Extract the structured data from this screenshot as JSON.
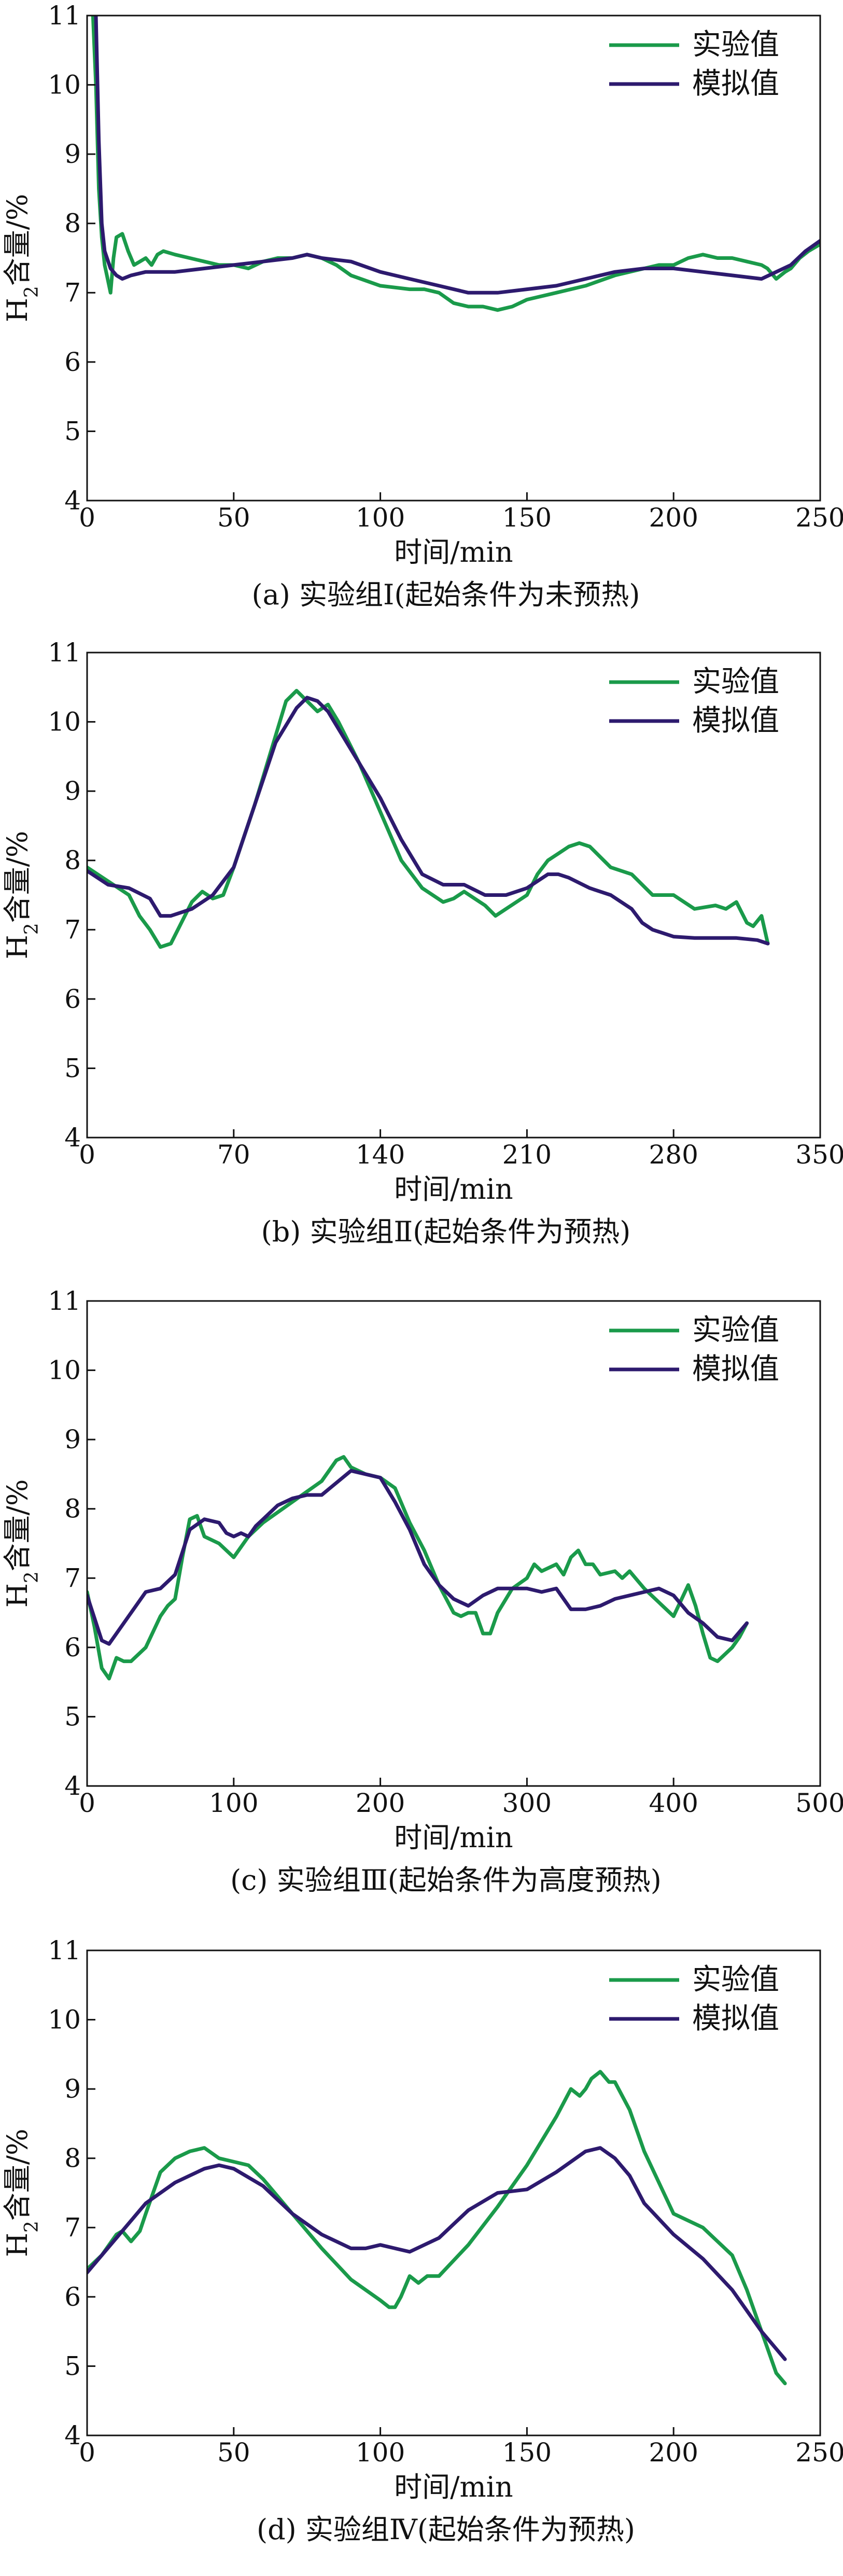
{
  "chart_data": [
    {
      "type": "line",
      "caption": "(a) 实验组Ⅰ(起始条件为未预热)",
      "xlabel": "时间/min",
      "ylabel": "H2含量/%",
      "xlim": [
        0,
        250
      ],
      "ylim": [
        4,
        11
      ],
      "xticks": [
        0,
        50,
        100,
        150,
        200,
        250
      ],
      "yticks": [
        4,
        5,
        6,
        7,
        8,
        9,
        10,
        11
      ],
      "legend_position": "top-right",
      "series": [
        {
          "name": "实验值",
          "color": "#1a9a4a",
          "x": [
            2,
            3,
            4,
            5,
            6,
            7,
            8,
            9,
            10,
            12,
            14,
            16,
            18,
            20,
            22,
            24,
            26,
            30,
            35,
            40,
            45,
            50,
            55,
            60,
            65,
            70,
            75,
            80,
            85,
            90,
            100,
            110,
            115,
            120,
            125,
            130,
            135,
            140,
            145,
            150,
            160,
            170,
            180,
            190,
            195,
            200,
            205,
            210,
            215,
            220,
            225,
            230,
            232,
            235,
            238,
            240,
            243,
            246,
            250
          ],
          "y": [
            11,
            10.0,
            8.5,
            7.8,
            7.4,
            7.2,
            7.0,
            7.5,
            7.8,
            7.85,
            7.6,
            7.4,
            7.45,
            7.5,
            7.4,
            7.55,
            7.6,
            7.55,
            7.5,
            7.45,
            7.4,
            7.4,
            7.35,
            7.45,
            7.5,
            7.5,
            7.55,
            7.5,
            7.4,
            7.25,
            7.1,
            7.05,
            7.05,
            7.0,
            6.85,
            6.8,
            6.8,
            6.75,
            6.8,
            6.9,
            7.0,
            7.1,
            7.25,
            7.35,
            7.4,
            7.4,
            7.5,
            7.55,
            7.5,
            7.5,
            7.45,
            7.4,
            7.35,
            7.2,
            7.3,
            7.35,
            7.5,
            7.6,
            7.7
          ]
        },
        {
          "name": "模拟值",
          "color": "#2d1a6e",
          "x": [
            3,
            4,
            5,
            6,
            8,
            10,
            12,
            15,
            20,
            30,
            40,
            50,
            60,
            70,
            75,
            80,
            90,
            100,
            110,
            120,
            130,
            140,
            150,
            160,
            170,
            180,
            190,
            200,
            210,
            220,
            230,
            235,
            240,
            245,
            250
          ],
          "y": [
            11,
            9.2,
            8.0,
            7.6,
            7.35,
            7.25,
            7.2,
            7.25,
            7.3,
            7.3,
            7.35,
            7.4,
            7.45,
            7.5,
            7.55,
            7.5,
            7.45,
            7.3,
            7.2,
            7.1,
            7.0,
            7.0,
            7.05,
            7.1,
            7.2,
            7.3,
            7.35,
            7.35,
            7.3,
            7.25,
            7.2,
            7.3,
            7.4,
            7.6,
            7.75
          ]
        }
      ]
    },
    {
      "type": "line",
      "caption": "(b) 实验组Ⅱ(起始条件为预热)",
      "xlabel": "时间/min",
      "ylabel": "H2含量/%",
      "xlim": [
        0,
        350
      ],
      "ylim": [
        4,
        11
      ],
      "xticks": [
        0,
        70,
        140,
        210,
        280,
        350
      ],
      "yticks": [
        4,
        5,
        6,
        7,
        8,
        9,
        10,
        11
      ],
      "legend_position": "top-right",
      "series": [
        {
          "name": "实验值",
          "color": "#1a9a4a",
          "x": [
            0,
            10,
            20,
            25,
            30,
            35,
            40,
            45,
            50,
            55,
            60,
            65,
            70,
            80,
            90,
            95,
            100,
            105,
            110,
            115,
            120,
            125,
            130,
            140,
            150,
            160,
            170,
            175,
            180,
            185,
            190,
            195,
            200,
            210,
            215,
            220,
            225,
            230,
            235,
            240,
            250,
            260,
            270,
            280,
            290,
            300,
            305,
            310,
            315,
            318,
            322,
            325
          ],
          "y": [
            7.9,
            7.7,
            7.5,
            7.2,
            7.0,
            6.75,
            6.8,
            7.1,
            7.4,
            7.55,
            7.45,
            7.5,
            7.9,
            8.8,
            9.8,
            10.3,
            10.45,
            10.3,
            10.15,
            10.25,
            10.0,
            9.7,
            9.4,
            8.7,
            8.0,
            7.6,
            7.4,
            7.45,
            7.55,
            7.45,
            7.35,
            7.2,
            7.3,
            7.5,
            7.8,
            8.0,
            8.1,
            8.2,
            8.25,
            8.2,
            7.9,
            7.8,
            7.5,
            7.5,
            7.3,
            7.35,
            7.3,
            7.4,
            7.1,
            7.05,
            7.2,
            6.8
          ]
        },
        {
          "name": "模拟值",
          "color": "#2d1a6e",
          "x": [
            0,
            10,
            20,
            30,
            35,
            40,
            50,
            60,
            70,
            80,
            90,
            100,
            105,
            110,
            115,
            120,
            130,
            140,
            150,
            160,
            170,
            180,
            190,
            200,
            210,
            220,
            225,
            230,
            240,
            250,
            260,
            265,
            270,
            280,
            290,
            300,
            310,
            320,
            325
          ],
          "y": [
            7.85,
            7.65,
            7.6,
            7.45,
            7.2,
            7.2,
            7.3,
            7.5,
            7.9,
            8.8,
            9.7,
            10.2,
            10.35,
            10.3,
            10.15,
            9.9,
            9.4,
            8.9,
            8.3,
            7.8,
            7.65,
            7.65,
            7.5,
            7.5,
            7.6,
            7.8,
            7.8,
            7.75,
            7.6,
            7.5,
            7.3,
            7.1,
            7.0,
            6.9,
            6.88,
            6.88,
            6.88,
            6.85,
            6.8
          ]
        }
      ]
    },
    {
      "type": "line",
      "caption": "(c) 实验组Ⅲ(起始条件为高度预热)",
      "xlabel": "时间/min",
      "ylabel": "H2含量/%",
      "xlim": [
        0,
        500
      ],
      "ylim": [
        4,
        11
      ],
      "xticks": [
        0,
        100,
        200,
        300,
        400,
        500
      ],
      "yticks": [
        4,
        5,
        6,
        7,
        8,
        9,
        10,
        11
      ],
      "legend_position": "top-right",
      "series": [
        {
          "name": "实验值",
          "color": "#1a9a4a",
          "x": [
            0,
            5,
            10,
            15,
            20,
            25,
            30,
            40,
            50,
            55,
            60,
            65,
            70,
            75,
            80,
            90,
            100,
            110,
            120,
            140,
            160,
            170,
            175,
            180,
            190,
            200,
            210,
            220,
            230,
            240,
            250,
            255,
            260,
            265,
            270,
            275,
            280,
            290,
            300,
            305,
            310,
            320,
            325,
            330,
            335,
            340,
            345,
            350,
            360,
            365,
            370,
            380,
            385,
            390,
            400,
            410,
            415,
            420,
            425,
            430,
            435,
            440,
            445,
            450
          ],
          "y": [
            6.8,
            6.3,
            5.7,
            5.55,
            5.85,
            5.8,
            5.8,
            6.0,
            6.45,
            6.6,
            6.7,
            7.3,
            7.85,
            7.9,
            7.6,
            7.5,
            7.3,
            7.6,
            7.8,
            8.1,
            8.4,
            8.7,
            8.75,
            8.6,
            8.5,
            8.45,
            8.3,
            7.8,
            7.4,
            6.9,
            6.5,
            6.45,
            6.5,
            6.5,
            6.2,
            6.2,
            6.5,
            6.85,
            7.0,
            7.2,
            7.1,
            7.2,
            7.05,
            7.3,
            7.4,
            7.2,
            7.2,
            7.05,
            7.1,
            7.0,
            7.1,
            6.85,
            6.75,
            6.65,
            6.45,
            6.9,
            6.6,
            6.2,
            5.85,
            5.8,
            5.9,
            6.0,
            6.15,
            6.35
          ]
        },
        {
          "name": "模拟值",
          "color": "#2d1a6e",
          "x": [
            0,
            10,
            15,
            20,
            30,
            40,
            50,
            60,
            70,
            80,
            90,
            95,
            100,
            105,
            110,
            115,
            120,
            130,
            140,
            150,
            160,
            180,
            200,
            210,
            220,
            230,
            240,
            250,
            260,
            270,
            280,
            290,
            300,
            310,
            320,
            330,
            340,
            350,
            360,
            370,
            380,
            390,
            400,
            410,
            420,
            430,
            440,
            450
          ],
          "y": [
            6.75,
            6.1,
            6.05,
            6.2,
            6.5,
            6.8,
            6.85,
            7.05,
            7.7,
            7.85,
            7.8,
            7.65,
            7.6,
            7.65,
            7.6,
            7.75,
            7.85,
            8.05,
            8.15,
            8.2,
            8.2,
            8.55,
            8.45,
            8.1,
            7.7,
            7.2,
            6.9,
            6.7,
            6.6,
            6.75,
            6.85,
            6.85,
            6.85,
            6.8,
            6.85,
            6.55,
            6.55,
            6.6,
            6.7,
            6.75,
            6.8,
            6.85,
            6.75,
            6.5,
            6.35,
            6.15,
            6.1,
            6.35
          ]
        }
      ]
    },
    {
      "type": "line",
      "caption": "(d) 实验组Ⅳ(起始条件为预热)",
      "xlabel": "时间/min",
      "ylabel": "H2含量/%",
      "xlim": [
        0,
        250
      ],
      "ylim": [
        4,
        11
      ],
      "xticks": [
        0,
        50,
        100,
        150,
        200,
        250
      ],
      "yticks": [
        4,
        5,
        6,
        7,
        8,
        9,
        10,
        11
      ],
      "legend_position": "top-right",
      "series": [
        {
          "name": "实验值",
          "color": "#1a9a4a",
          "x": [
            0,
            5,
            10,
            12,
            15,
            18,
            20,
            25,
            30,
            35,
            40,
            45,
            50,
            55,
            60,
            70,
            80,
            90,
            100,
            103,
            105,
            107,
            110,
            113,
            116,
            120,
            130,
            140,
            150,
            160,
            165,
            168,
            170,
            172,
            175,
            178,
            180,
            185,
            190,
            200,
            210,
            215,
            220,
            225,
            230,
            235,
            238
          ],
          "y": [
            6.4,
            6.6,
            6.9,
            6.95,
            6.8,
            6.95,
            7.2,
            7.8,
            8.0,
            8.1,
            8.15,
            8.0,
            7.95,
            7.9,
            7.7,
            7.2,
            6.7,
            6.25,
            5.95,
            5.85,
            5.85,
            6.0,
            6.3,
            6.2,
            6.3,
            6.3,
            6.75,
            7.3,
            7.9,
            8.6,
            9.0,
            8.9,
            9.0,
            9.15,
            9.25,
            9.1,
            9.1,
            8.7,
            8.1,
            7.2,
            7.0,
            6.8,
            6.6,
            6.1,
            5.5,
            4.9,
            4.75
          ]
        },
        {
          "name": "模拟值",
          "color": "#2d1a6e",
          "x": [
            0,
            10,
            20,
            30,
            40,
            45,
            50,
            60,
            70,
            80,
            90,
            95,
            100,
            105,
            110,
            120,
            130,
            140,
            150,
            160,
            170,
            175,
            180,
            185,
            190,
            200,
            210,
            220,
            230,
            238
          ],
          "y": [
            6.35,
            6.85,
            7.35,
            7.65,
            7.85,
            7.9,
            7.85,
            7.6,
            7.2,
            6.9,
            6.7,
            6.7,
            6.75,
            6.7,
            6.65,
            6.85,
            7.25,
            7.5,
            7.55,
            7.8,
            8.1,
            8.15,
            8.0,
            7.75,
            7.35,
            6.9,
            6.55,
            6.1,
            5.5,
            5.1
          ]
        }
      ]
    }
  ]
}
